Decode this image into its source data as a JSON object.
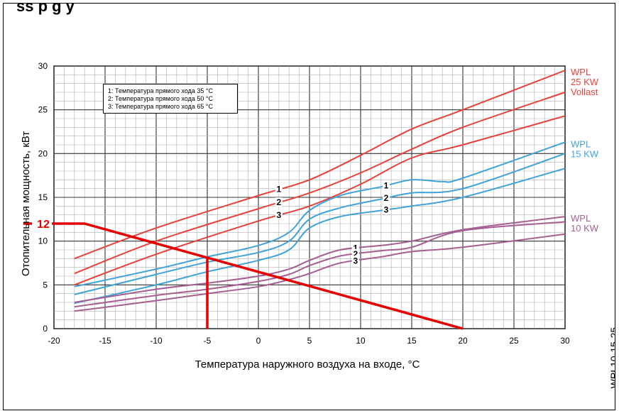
{
  "page": {
    "title": "ss p                                                       g   y",
    "side_code": "WPL10-15-25"
  },
  "legend": [
    "1: Температура прямого хода 35 °C",
    "2: Температура прямого хода 50 °C",
    "3: Температура прямого хода 65 °C"
  ],
  "colors": {
    "red": "#e8413a",
    "blue": "#3ea3d8",
    "purple": "#a65e92",
    "highlight": "#e60000"
  },
  "chart_data": {
    "type": "line",
    "xlabel": "Температура наружного воздуха на входе, °C",
    "ylabel": "Отопительная мощность, кВт",
    "xlim": [
      -20,
      30
    ],
    "ylim": [
      0,
      30
    ],
    "xticks": [
      -20,
      -15,
      -10,
      -5,
      0,
      5,
      10,
      15,
      20,
      25,
      30
    ],
    "yticks": [
      0,
      5,
      10,
      15,
      20,
      25,
      30
    ],
    "grid": true,
    "series": [
      {
        "group": "WPL 25 KW",
        "curve": "1",
        "color": "red",
        "x": [
          -18,
          -10,
          0,
          5,
          10,
          15,
          20,
          30
        ],
        "y": [
          8,
          11.5,
          15.2,
          17,
          19.8,
          22.8,
          25,
          29.5
        ]
      },
      {
        "group": "WPL 25 KW",
        "curve": "2",
        "color": "red",
        "x": [
          -18,
          -10,
          0,
          5,
          10,
          15,
          20,
          30
        ],
        "y": [
          6.3,
          10,
          13.7,
          15.5,
          17.8,
          20.5,
          23,
          27
        ]
      },
      {
        "group": "WPL 25 KW",
        "curve": "3",
        "color": "red",
        "x": [
          -18,
          -10,
          0,
          5,
          10,
          15,
          20,
          30
        ],
        "y": [
          5,
          8.5,
          12.3,
          14,
          16.5,
          19.5,
          21,
          24.3
        ]
      },
      {
        "group": "WPL 15 KW",
        "curve": "1",
        "color": "blue",
        "x": [
          -18,
          -10,
          -5,
          0,
          3,
          5,
          8,
          12,
          15,
          18,
          20,
          30
        ],
        "y": [
          4.8,
          6.8,
          8.2,
          9.5,
          11,
          13.5,
          15.2,
          16.2,
          17,
          16.8,
          17.2,
          21.3
        ]
      },
      {
        "group": "WPL 15 KW",
        "curve": "2",
        "color": "blue",
        "x": [
          -18,
          -10,
          -5,
          0,
          3,
          5,
          8,
          12,
          15,
          20,
          30
        ],
        "y": [
          3.9,
          6.2,
          7.6,
          8.7,
          10,
          12.5,
          13.8,
          14.8,
          15.5,
          16,
          20
        ]
      },
      {
        "group": "WPL 15 KW",
        "curve": "3",
        "color": "blue",
        "x": [
          -18,
          -10,
          -5,
          0,
          3,
          5,
          8,
          12,
          15,
          20,
          30
        ],
        "y": [
          2.9,
          5,
          6.5,
          7.8,
          9,
          11.5,
          12.8,
          13.5,
          14,
          15,
          18.3
        ]
      },
      {
        "group": "WPL 10 KW",
        "curve": "1",
        "color": "purple",
        "x": [
          -18,
          -10,
          -5,
          0,
          3,
          5,
          8,
          12,
          15,
          20,
          30
        ],
        "y": [
          3,
          4.5,
          5.2,
          6,
          6.8,
          7.8,
          9,
          9.5,
          10,
          11.3,
          12.8
        ]
      },
      {
        "group": "WPL 10 KW",
        "curve": "2",
        "color": "purple",
        "x": [
          -18,
          -10,
          -5,
          0,
          3,
          5,
          8,
          12,
          15,
          20,
          30
        ],
        "y": [
          2.5,
          3.8,
          4.5,
          5.4,
          6.2,
          7.2,
          8.3,
          8.9,
          9.3,
          11.2,
          12.2
        ]
      },
      {
        "group": "WPL 10 KW",
        "curve": "3",
        "color": "purple",
        "x": [
          -18,
          -10,
          -5,
          0,
          3,
          5,
          8,
          12,
          15,
          20,
          30
        ],
        "y": [
          2,
          3.2,
          4,
          4.8,
          5.6,
          6.3,
          7.5,
          8.2,
          8.8,
          9.3,
          10.8
        ]
      }
    ],
    "group_labels": [
      {
        "lines": [
          "WPL",
          "25 KW",
          "Vollast"
        ],
        "color": "red"
      },
      {
        "lines": [
          "WPL",
          "15 KW"
        ],
        "color": "blue"
      },
      {
        "lines": [
          "WPL",
          "10 KW"
        ],
        "color": "purple"
      }
    ],
    "annotation": {
      "label": "12",
      "x": [
        -23,
        -17,
        20
      ],
      "y": [
        12,
        12,
        0
      ],
      "drop_x": -5
    }
  }
}
